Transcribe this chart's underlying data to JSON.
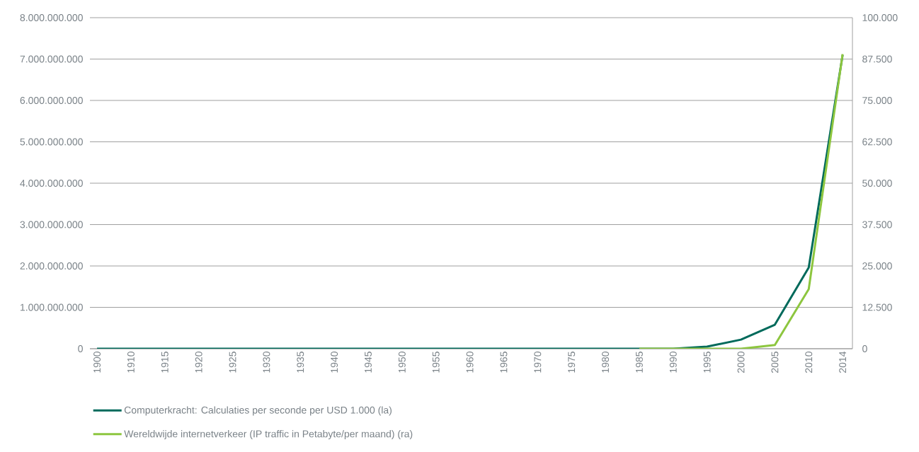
{
  "chart_data": {
    "type": "line",
    "categories": [
      "1900",
      "1910",
      "1915",
      "1920",
      "1925",
      "1930",
      "1935",
      "1940",
      "1945",
      "1950",
      "1955",
      "1960",
      "1965",
      "1970",
      "1975",
      "1980",
      "1985",
      "1990",
      "1995",
      "2000",
      "2005",
      "2010",
      "2014"
    ],
    "series": [
      {
        "name": "Computerkracht: Calculaties per seconde per USD 1.000 (la)",
        "color": "#006a5b",
        "axis": "y",
        "values": [
          0,
          0,
          0,
          0,
          0,
          0,
          0,
          0,
          0,
          0,
          0,
          0,
          0,
          0,
          0,
          0,
          0,
          0,
          50000000,
          220000000,
          580000000,
          1960000000,
          7100000000
        ]
      },
      {
        "name": "Wereldwijde internetverkeer (IP traffic in Petabyte/per maand) (ra)",
        "color": "#8dc63f",
        "axis": "y2",
        "values": [
          null,
          null,
          null,
          null,
          null,
          null,
          null,
          null,
          null,
          null,
          null,
          null,
          null,
          null,
          null,
          null,
          0,
          0,
          0,
          0,
          1100,
          18000,
          89000
        ]
      }
    ],
    "ylim": [
      0,
      8000000000
    ],
    "yticks": [
      0,
      {
        "value": 1000000000,
        "label": "1.000.000.000"
      },
      {
        "value": 2000000000,
        "label": "2.000.000.000"
      },
      {
        "value": 3000000000,
        "label": "3.000.000.000"
      },
      {
        "value": 4000000000,
        "label": "4.000.000.000"
      },
      {
        "value": 5000000000,
        "label": "5.000.000.000"
      },
      {
        "value": 6000000000,
        "label": "6.000.000.000"
      },
      {
        "value": 7000000000,
        "label": "7.000.000.000"
      },
      {
        "value": 8000000000,
        "label": "8.000.000.000"
      }
    ],
    "y2lim": [
      0,
      100000
    ],
    "y2ticks": [
      0,
      {
        "value": 12500,
        "label": "12.500"
      },
      {
        "value": 25000,
        "label": "25.000"
      },
      {
        "value": 37500,
        "label": "37.500"
      },
      {
        "value": 50000,
        "label": "50.000"
      },
      {
        "value": 62500,
        "label": "62.500"
      },
      {
        "value": 75000,
        "label": "75.000"
      },
      {
        "value": 87500,
        "label": "87.500"
      },
      {
        "value": 100000,
        "label": "100.000"
      }
    ],
    "grid": "y",
    "legend": "bottom",
    "marker": "none",
    "line_style": "solid"
  }
}
